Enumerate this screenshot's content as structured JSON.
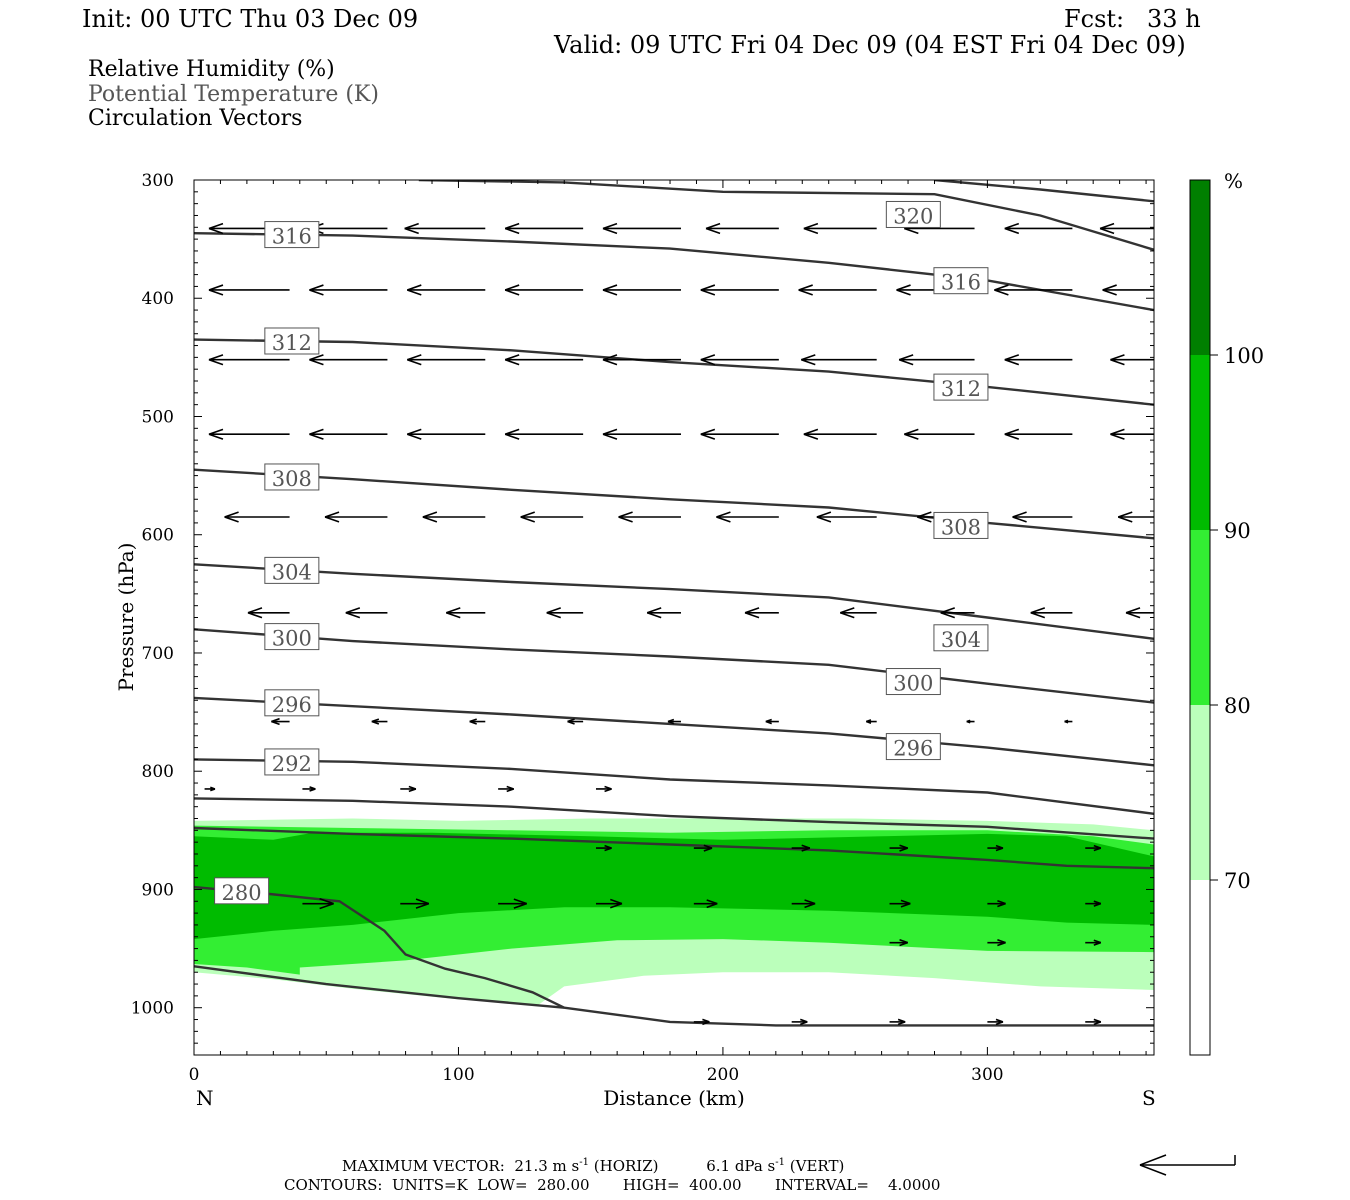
{
  "header": {
    "init": "Init: 00 UTC Thu 03 Dec 09",
    "fcst": "Fcst:   33 h",
    "valid": "Valid: 09 UTC Fri 04 Dec 09 (04 EST Fri 04 Dec 09)",
    "field1": "Relative Humidity (%)",
    "field2": "Potential Temperature (K)",
    "field3": "Circulation Vectors"
  },
  "footer": {
    "max_vector_prefix": "MAXIMUM VECTOR:",
    "max_horiz": "21.3 m s",
    "max_horiz_unit": "(HORIZ)",
    "max_vert": "6.1 dPa s",
    "max_vert_unit": "(VERT)",
    "exponent": "-1",
    "contours": "CONTOURS:  UNITS=K  LOW=  280.00       HIGH=  400.00       INTERVAL=    4.0000"
  },
  "colors": {
    "rh_70": "#bbffbb",
    "rh_80": "#33ee33",
    "rh_90": "#00bb00",
    "rh_100": "#007f00",
    "contour": "#333333",
    "label_gray": "#555555"
  },
  "chart_data": {
    "type": "cross-section",
    "xlabel": "Distance (km)",
    "ylabel": "Pressure (hPa)",
    "xlim": [
      0,
      363
    ],
    "ylim": [
      300,
      1040
    ],
    "x_ticks": [
      0,
      100,
      200,
      300
    ],
    "y_ticks": [
      300,
      400,
      500,
      600,
      700,
      800,
      900,
      1000
    ],
    "x_end_labels": {
      "left": "N",
      "right": "S"
    },
    "colorbar": {
      "unit": "%",
      "levels": [
        70,
        80,
        90,
        100
      ],
      "colors": [
        "#ffffff",
        "#bbffbb",
        "#33ee33",
        "#00bb00",
        "#007f00"
      ]
    },
    "rh_fill": [
      {
        "level": 70,
        "color": "#bbffbb",
        "top": [
          [
            0,
            842
          ],
          [
            60,
            840
          ],
          [
            100,
            842
          ],
          [
            150,
            840
          ],
          [
            200,
            840
          ],
          [
            250,
            840
          ],
          [
            300,
            842
          ],
          [
            340,
            845
          ],
          [
            363,
            850
          ]
        ],
        "bottom": [
          [
            363,
            985
          ],
          [
            320,
            982
          ],
          [
            280,
            975
          ],
          [
            240,
            970
          ],
          [
            200,
            970
          ],
          [
            170,
            973
          ],
          [
            140,
            982
          ],
          [
            130,
            998
          ],
          [
            100,
            993
          ],
          [
            60,
            984
          ],
          [
            30,
            976
          ],
          [
            0,
            970
          ]
        ]
      },
      {
        "level": 80,
        "color": "#33ee33",
        "top": [
          [
            0,
            846
          ],
          [
            60,
            848
          ],
          [
            120,
            850
          ],
          [
            180,
            852
          ],
          [
            240,
            850
          ],
          [
            300,
            850
          ],
          [
            340,
            855
          ],
          [
            363,
            862
          ]
        ],
        "bottom": [
          [
            363,
            953
          ],
          [
            300,
            952
          ],
          [
            240,
            945
          ],
          [
            200,
            942
          ],
          [
            160,
            943
          ],
          [
            120,
            950
          ],
          [
            80,
            960
          ],
          [
            40,
            966
          ],
          [
            40,
            972
          ],
          [
            20,
            966
          ],
          [
            0,
            963
          ]
        ]
      },
      {
        "level": 90,
        "color": "#00bb00",
        "top": [
          [
            0,
            855
          ],
          [
            30,
            858
          ],
          [
            45,
            852
          ],
          [
            90,
            852
          ],
          [
            150,
            855
          ],
          [
            200,
            858
          ],
          [
            260,
            855
          ],
          [
            300,
            853
          ],
          [
            330,
            855
          ],
          [
            363,
            872
          ]
        ],
        "bottom": [
          [
            363,
            930
          ],
          [
            330,
            928
          ],
          [
            300,
            923
          ],
          [
            240,
            918
          ],
          [
            180,
            915
          ],
          [
            140,
            915
          ],
          [
            100,
            920
          ],
          [
            60,
            930
          ],
          [
            30,
            935
          ],
          [
            0,
            942
          ]
        ]
      }
    ],
    "theta_contours": [
      {
        "value": 280,
        "points": [
          [
            0,
            898
          ],
          [
            25,
            903
          ],
          [
            55,
            910
          ],
          [
            72,
            935
          ],
          [
            80,
            955
          ],
          [
            95,
            967
          ],
          [
            110,
            975
          ],
          [
            128,
            987
          ],
          [
            140,
            1000
          ]
        ]
      },
      {
        "value": 284,
        "points": [
          [
            0,
            965
          ],
          [
            50,
            980
          ],
          [
            100,
            992
          ],
          [
            140,
            1000
          ],
          [
            180,
            1012
          ],
          [
            220,
            1015
          ],
          [
            300,
            1015
          ],
          [
            363,
            1015
          ]
        ]
      },
      {
        "value": 288,
        "points": [
          [
            0,
            848
          ],
          [
            60,
            853
          ],
          [
            120,
            857
          ],
          [
            180,
            862
          ],
          [
            240,
            867
          ],
          [
            300,
            875
          ],
          [
            330,
            880
          ],
          [
            363,
            882
          ]
        ]
      },
      {
        "value": 290,
        "points": [
          [
            0,
            823
          ],
          [
            60,
            825
          ],
          [
            120,
            830
          ],
          [
            180,
            838
          ],
          [
            240,
            843
          ],
          [
            300,
            847
          ],
          [
            363,
            857
          ]
        ]
      },
      {
        "value": 292,
        "points": [
          [
            0,
            790
          ],
          [
            60,
            792
          ],
          [
            120,
            798
          ],
          [
            180,
            807
          ],
          [
            240,
            812
          ],
          [
            300,
            818
          ],
          [
            363,
            836
          ]
        ]
      },
      {
        "value": 296,
        "points": [
          [
            0,
            738
          ],
          [
            60,
            745
          ],
          [
            120,
            752
          ],
          [
            180,
            760
          ],
          [
            240,
            768
          ],
          [
            300,
            780
          ],
          [
            363,
            795
          ]
        ]
      },
      {
        "value": 300,
        "points": [
          [
            0,
            680
          ],
          [
            60,
            690
          ],
          [
            120,
            697
          ],
          [
            180,
            703
          ],
          [
            240,
            710
          ],
          [
            300,
            726
          ],
          [
            363,
            742
          ]
        ]
      },
      {
        "value": 304,
        "points": [
          [
            0,
            625
          ],
          [
            60,
            633
          ],
          [
            120,
            640
          ],
          [
            180,
            646
          ],
          [
            240,
            653
          ],
          [
            300,
            670
          ],
          [
            363,
            688
          ]
        ]
      },
      {
        "value": 308,
        "points": [
          [
            0,
            545
          ],
          [
            60,
            553
          ],
          [
            120,
            562
          ],
          [
            180,
            570
          ],
          [
            240,
            577
          ],
          [
            300,
            590
          ],
          [
            363,
            603
          ]
        ]
      },
      {
        "value": 312,
        "points": [
          [
            0,
            435
          ],
          [
            60,
            437
          ],
          [
            120,
            444
          ],
          [
            180,
            454
          ],
          [
            240,
            462
          ],
          [
            300,
            475
          ],
          [
            363,
            490
          ]
        ]
      },
      {
        "value": 316,
        "points": [
          [
            0,
            345
          ],
          [
            60,
            347
          ],
          [
            120,
            352
          ],
          [
            180,
            358
          ],
          [
            240,
            370
          ],
          [
            300,
            385
          ],
          [
            363,
            410
          ]
        ]
      },
      {
        "value": 320,
        "points": [
          [
            85,
            300
          ],
          [
            140,
            302
          ],
          [
            200,
            310
          ],
          [
            280,
            312
          ],
          [
            320,
            330
          ],
          [
            363,
            359
          ]
        ]
      },
      {
        "value": 324,
        "points": [
          [
            280,
            300
          ],
          [
            320,
            308
          ],
          [
            363,
            318
          ]
        ]
      }
    ],
    "contour_labels": [
      {
        "text": "316",
        "x": 37,
        "y": 347
      },
      {
        "text": "320",
        "x": 272,
        "y": 330
      },
      {
        "text": "316",
        "x": 290,
        "y": 386
      },
      {
        "text": "312",
        "x": 37,
        "y": 437
      },
      {
        "text": "312",
        "x": 290,
        "y": 476
      },
      {
        "text": "308",
        "x": 37,
        "y": 552
      },
      {
        "text": "308",
        "x": 290,
        "y": 593
      },
      {
        "text": "304",
        "x": 37,
        "y": 631
      },
      {
        "text": "304",
        "x": 290,
        "y": 688
      },
      {
        "text": "300",
        "x": 37,
        "y": 687
      },
      {
        "text": "300",
        "x": 272,
        "y": 725
      },
      {
        "text": "296",
        "x": 37,
        "y": 743
      },
      {
        "text": "296",
        "x": 272,
        "y": 780
      },
      {
        "text": "292",
        "x": 37,
        "y": 793
      },
      {
        "text": "280",
        "x": 18,
        "y": 902
      }
    ],
    "wind_vectors": {
      "x": [
        4,
        41,
        78,
        115,
        152,
        189,
        226,
        263,
        300,
        337
      ],
      "rows": [
        {
          "p": 341,
          "dx": [
            -31,
            -30,
            -31,
            -30,
            -30,
            -28,
            -28,
            -27,
            -26,
            -27
          ]
        },
        {
          "p": 393,
          "dx": [
            -31,
            -30,
            -30,
            -30,
            -30,
            -30,
            -30,
            -30,
            -30,
            -26
          ]
        },
        {
          "p": 452,
          "dx": [
            -31,
            -30,
            -30,
            -30,
            -30,
            -30,
            -29,
            -29,
            -26,
            -23
          ]
        },
        {
          "p": 515,
          "dx": [
            -31,
            -30,
            -30,
            -30,
            -30,
            -30,
            -28,
            -27,
            -26,
            -23
          ]
        },
        {
          "p": 585,
          "dx": [
            -25,
            -24,
            -24,
            -24,
            -24,
            -24,
            -23,
            -22,
            -23,
            -20
          ]
        },
        {
          "p": 666,
          "dx": [
            -16,
            -16,
            -15,
            -14,
            -13,
            -13,
            -14,
            -13,
            -16,
            -17
          ]
        },
        {
          "p": 758,
          "dx": [
            -7,
            -6,
            -6,
            -6,
            -5,
            -5,
            -4,
            -3,
            -3,
            -3
          ]
        },
        {
          "p": 815,
          "dx": [
            4,
            5,
            6,
            6,
            6,
            0,
            0,
            0,
            0,
            0
          ]
        },
        {
          "p": 865,
          "dx": [
            0,
            0,
            0,
            0,
            6,
            7,
            7,
            7,
            6,
            6
          ]
        },
        {
          "p": 912,
          "dx": [
            0,
            12,
            11,
            11,
            10,
            9,
            9,
            8,
            7,
            6
          ]
        },
        {
          "p": 945,
          "dx": [
            0,
            0,
            0,
            0,
            0,
            0,
            0,
            7,
            7,
            6
          ]
        },
        {
          "p": 1012,
          "dx": [
            0,
            0,
            0,
            0,
            0,
            6,
            6,
            6,
            6,
            6
          ]
        }
      ]
    }
  }
}
